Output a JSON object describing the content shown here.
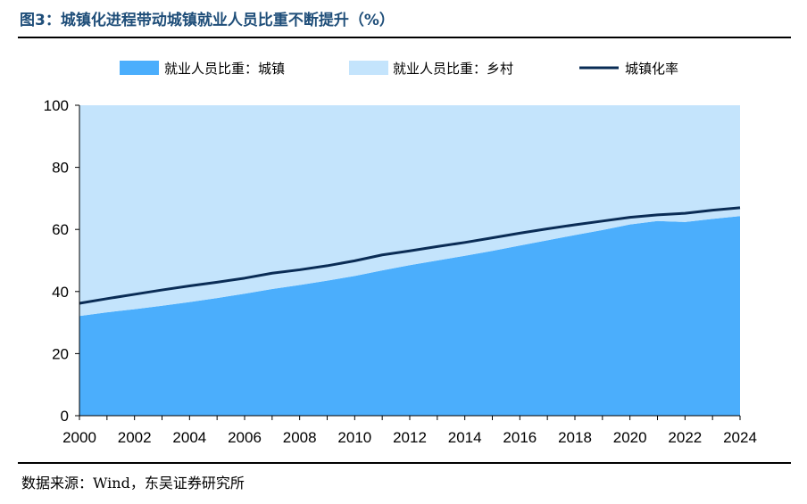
{
  "header": {
    "title": "图3：城镇化进程带动城镇就业人员比重不断提升（%）"
  },
  "footer": {
    "source": "数据来源：Wind，东吴证券研究所"
  },
  "chart_data": {
    "type": "area",
    "title": "图3：城镇化进程带动城镇就业人员比重不断提升（%）",
    "xlabel": "",
    "ylabel": "",
    "ylim": [
      0,
      100
    ],
    "xlim": [
      2000,
      2024
    ],
    "y_ticks": [
      0,
      20,
      40,
      60,
      80,
      100
    ],
    "x_ticks": [
      2000,
      2002,
      2004,
      2006,
      2008,
      2010,
      2012,
      2014,
      2016,
      2018,
      2020,
      2022,
      2024
    ],
    "grid": false,
    "legend_position": "top",
    "x": [
      2000,
      2001,
      2002,
      2003,
      2004,
      2005,
      2006,
      2007,
      2008,
      2009,
      2010,
      2011,
      2012,
      2013,
      2014,
      2015,
      2016,
      2017,
      2018,
      2019,
      2020,
      2021,
      2022,
      2023,
      2024
    ],
    "series": [
      {
        "name": "就业人员比重：城镇",
        "kind": "area",
        "color": "#4baefc",
        "values": [
          32.1,
          33.3,
          34.3,
          35.4,
          36.6,
          37.9,
          39.3,
          40.8,
          42.1,
          43.5,
          45.0,
          46.8,
          48.5,
          50.0,
          51.5,
          53.1,
          54.8,
          56.5,
          58.2,
          59.8,
          61.6,
          62.7,
          62.4,
          63.4,
          64.3
        ]
      },
      {
        "name": "就业人员比重：乡村",
        "kind": "area",
        "color": "#c4e4fc",
        "values": [
          67.9,
          66.7,
          65.7,
          64.6,
          63.4,
          62.1,
          60.7,
          59.2,
          57.9,
          56.5,
          55.0,
          53.2,
          51.5,
          50.0,
          48.5,
          46.9,
          45.2,
          43.5,
          41.8,
          40.2,
          38.4,
          37.3,
          37.6,
          36.6,
          35.7
        ]
      },
      {
        "name": "城镇化率",
        "kind": "line",
        "color": "#0a2c55",
        "values": [
          36.2,
          37.7,
          39.1,
          40.5,
          41.8,
          43.0,
          44.3,
          45.9,
          47.0,
          48.3,
          49.9,
          51.8,
          53.1,
          54.5,
          55.8,
          57.3,
          58.8,
          60.2,
          61.5,
          62.7,
          63.9,
          64.7,
          65.2,
          66.2,
          67.0
        ]
      }
    ]
  }
}
